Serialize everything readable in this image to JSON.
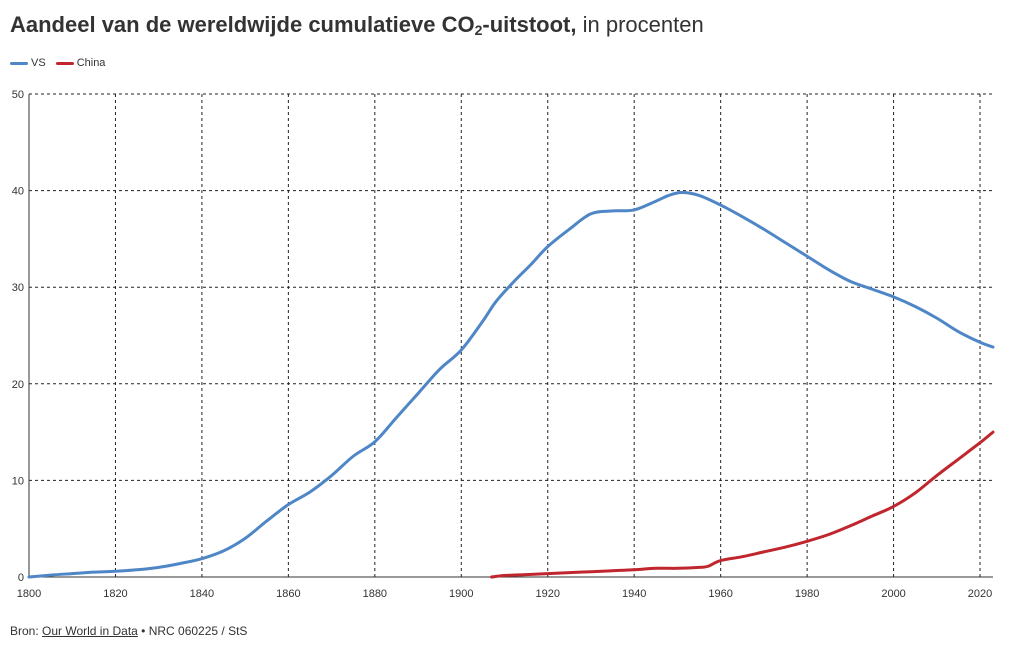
{
  "title_bold": "Aandeel van de wereldwijde cumulatieve CO",
  "title_sub": "2",
  "title_bold_end": "-uitstoot,",
  "title_light": " in procenten",
  "source": {
    "prefix": "Bron: ",
    "link": "Our World in Data",
    "suffix": " • NRC 060225 / StS"
  },
  "chart_data": {
    "type": "line",
    "xlim": [
      1800,
      2023
    ],
    "ylim": [
      0,
      50
    ],
    "xticks": [
      1800,
      1820,
      1840,
      1860,
      1880,
      1900,
      1920,
      1940,
      1960,
      1980,
      2000,
      2020
    ],
    "yticks": [
      0,
      10,
      20,
      30,
      40,
      50
    ],
    "grid": true,
    "legend": "top-left",
    "series": [
      {
        "name": "VS",
        "color": "#4e86c6",
        "points": [
          [
            1800,
            0.0
          ],
          [
            1805,
            0.2
          ],
          [
            1810,
            0.35
          ],
          [
            1815,
            0.5
          ],
          [
            1820,
            0.6
          ],
          [
            1825,
            0.75
          ],
          [
            1830,
            1.0
          ],
          [
            1835,
            1.4
          ],
          [
            1840,
            1.9
          ],
          [
            1845,
            2.7
          ],
          [
            1850,
            4.0
          ],
          [
            1855,
            5.8
          ],
          [
            1860,
            7.5
          ],
          [
            1865,
            8.8
          ],
          [
            1870,
            10.5
          ],
          [
            1875,
            12.5
          ],
          [
            1880,
            14.0
          ],
          [
            1885,
            16.5
          ],
          [
            1890,
            19.0
          ],
          [
            1895,
            21.5
          ],
          [
            1900,
            23.5
          ],
          [
            1905,
            26.5
          ],
          [
            1908,
            28.5
          ],
          [
            1912,
            30.5
          ],
          [
            1916,
            32.3
          ],
          [
            1920,
            34.2
          ],
          [
            1925,
            36.0
          ],
          [
            1930,
            37.6
          ],
          [
            1935,
            37.9
          ],
          [
            1940,
            38.0
          ],
          [
            1945,
            38.9
          ],
          [
            1948,
            39.5
          ],
          [
            1951,
            39.8
          ],
          [
            1955,
            39.5
          ],
          [
            1960,
            38.5
          ],
          [
            1965,
            37.3
          ],
          [
            1970,
            36.0
          ],
          [
            1975,
            34.6
          ],
          [
            1980,
            33.2
          ],
          [
            1985,
            31.8
          ],
          [
            1990,
            30.6
          ],
          [
            1995,
            29.8
          ],
          [
            2000,
            29.0
          ],
          [
            2005,
            28.0
          ],
          [
            2010,
            26.8
          ],
          [
            2015,
            25.4
          ],
          [
            2020,
            24.3
          ],
          [
            2023,
            23.8
          ]
        ]
      },
      {
        "name": "China",
        "color": "#c0262d",
        "points": [
          [
            1907,
            0.0
          ],
          [
            1910,
            0.15
          ],
          [
            1915,
            0.25
          ],
          [
            1920,
            0.35
          ],
          [
            1925,
            0.45
          ],
          [
            1930,
            0.55
          ],
          [
            1935,
            0.65
          ],
          [
            1940,
            0.75
          ],
          [
            1945,
            0.9
          ],
          [
            1950,
            0.9
          ],
          [
            1955,
            1.0
          ],
          [
            1957,
            1.1
          ],
          [
            1960,
            1.7
          ],
          [
            1965,
            2.1
          ],
          [
            1970,
            2.6
          ],
          [
            1975,
            3.1
          ],
          [
            1980,
            3.7
          ],
          [
            1985,
            4.4
          ],
          [
            1990,
            5.3
          ],
          [
            1995,
            6.3
          ],
          [
            2000,
            7.3
          ],
          [
            2005,
            8.7
          ],
          [
            2010,
            10.5
          ],
          [
            2015,
            12.2
          ],
          [
            2020,
            13.9
          ],
          [
            2023,
            15.0
          ]
        ]
      }
    ]
  }
}
